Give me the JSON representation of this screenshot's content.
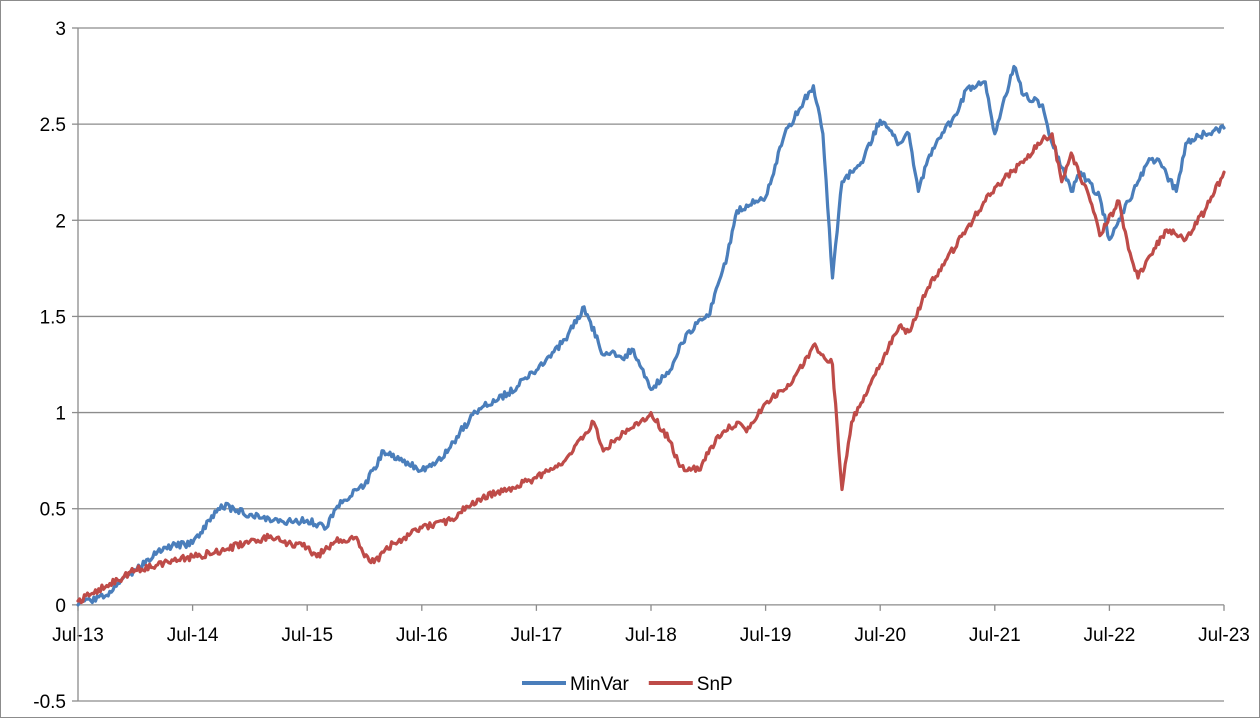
{
  "chart_data": {
    "type": "line",
    "title": "",
    "xlabel": "",
    "ylabel": "",
    "ylim": [
      -0.5,
      3
    ],
    "y_ticks": [
      -0.5,
      0,
      0.5,
      1,
      1.5,
      2,
      2.5,
      3
    ],
    "y_tick_labels": [
      "-0.5",
      "0",
      "0.5",
      "1",
      "1.5",
      "2",
      "2.5",
      "3"
    ],
    "x_range": [
      "2013-07",
      "2023-07"
    ],
    "x_tick_labels": [
      "Jul-13",
      "Jul-14",
      "Jul-15",
      "Jul-16",
      "Jul-17",
      "Jul-18",
      "Jul-19",
      "Jul-20",
      "Jul-21",
      "Jul-22",
      "Jul-23"
    ],
    "grid": "horizontal",
    "legend_position": "bottom",
    "series": [
      {
        "name": "MinVar",
        "color": "#4a7ebb",
        "x": [
          "2013-07",
          "2013-10",
          "2014-01",
          "2014-04",
          "2014-07",
          "2014-10",
          "2015-01",
          "2015-03",
          "2015-04",
          "2015-07",
          "2015-09",
          "2015-10",
          "2015-12",
          "2016-01",
          "2016-03",
          "2016-07",
          "2016-08",
          "2016-10",
          "2016-11",
          "2017-01",
          "2017-04",
          "2017-07",
          "2017-10",
          "2017-12",
          "2018-02",
          "2018-03",
          "2018-04",
          "2018-05",
          "2018-07",
          "2018-09",
          "2018-10",
          "2018-12",
          "2019-01",
          "2019-03",
          "2019-04",
          "2019-06",
          "2019-07",
          "2019-09",
          "2019-11",
          "2019-12",
          "2020-01",
          "2020-02",
          "2020-03",
          "2020-04",
          "2020-05",
          "2020-07",
          "2020-09",
          "2020-10",
          "2020-11",
          "2020-12",
          "2021-01",
          "2021-03",
          "2021-04",
          "2021-06",
          "2021-07",
          "2021-09",
          "2021-10",
          "2021-12",
          "2022-01",
          "2022-03",
          "2022-04",
          "2022-06",
          "2022-07",
          "2022-09",
          "2022-10",
          "2022-11",
          "2022-12",
          "2023-02",
          "2023-03",
          "2023-05",
          "2023-07"
        ],
        "y": [
          0.0,
          0.05,
          0.18,
          0.3,
          0.32,
          0.52,
          0.47,
          0.45,
          0.43,
          0.44,
          0.4,
          0.5,
          0.6,
          0.62,
          0.8,
          0.7,
          0.72,
          0.82,
          0.9,
          1.02,
          1.1,
          1.22,
          1.38,
          1.55,
          1.3,
          1.32,
          1.28,
          1.33,
          1.12,
          1.22,
          1.35,
          1.48,
          1.5,
          1.82,
          2.05,
          2.1,
          2.12,
          2.45,
          2.62,
          2.7,
          2.45,
          1.7,
          2.2,
          2.25,
          2.3,
          2.52,
          2.4,
          2.45,
          2.15,
          2.32,
          2.42,
          2.55,
          2.68,
          2.72,
          2.45,
          2.8,
          2.65,
          2.6,
          2.4,
          2.15,
          2.25,
          2.12,
          1.9,
          2.1,
          2.2,
          2.3,
          2.32,
          2.15,
          2.4,
          2.45,
          2.48
        ]
      },
      {
        "name": "SnP",
        "color": "#be4b48",
        "x": [
          "2013-07",
          "2013-10",
          "2014-01",
          "2014-04",
          "2014-07",
          "2014-10",
          "2015-01",
          "2015-03",
          "2015-05",
          "2015-07",
          "2015-08",
          "2015-10",
          "2015-12",
          "2016-01",
          "2016-02",
          "2016-04",
          "2016-07",
          "2016-10",
          "2016-11",
          "2017-01",
          "2017-04",
          "2017-07",
          "2017-10",
          "2017-12",
          "2018-01",
          "2018-02",
          "2018-03",
          "2018-05",
          "2018-07",
          "2018-09",
          "2018-10",
          "2018-12",
          "2019-02",
          "2019-04",
          "2019-05",
          "2019-07",
          "2019-09",
          "2019-11",
          "2019-12",
          "2020-02",
          "2020-03",
          "2020-04",
          "2020-05",
          "2020-06",
          "2020-07",
          "2020-09",
          "2020-10",
          "2020-12",
          "2021-02",
          "2021-04",
          "2021-06",
          "2021-08",
          "2021-10",
          "2021-12",
          "2022-01",
          "2022-02",
          "2022-03",
          "2022-05",
          "2022-06",
          "2022-08",
          "2022-09",
          "2022-10",
          "2022-11",
          "2023-01",
          "2023-03",
          "2023-05",
          "2023-07"
        ],
        "y": [
          0.02,
          0.1,
          0.18,
          0.22,
          0.25,
          0.28,
          0.33,
          0.35,
          0.32,
          0.3,
          0.25,
          0.33,
          0.35,
          0.25,
          0.22,
          0.32,
          0.4,
          0.44,
          0.48,
          0.55,
          0.6,
          0.66,
          0.75,
          0.88,
          0.95,
          0.8,
          0.85,
          0.92,
          1.0,
          0.85,
          0.72,
          0.7,
          0.88,
          0.95,
          0.9,
          1.05,
          1.12,
          1.25,
          1.35,
          1.25,
          0.6,
          0.95,
          1.05,
          1.15,
          1.25,
          1.45,
          1.42,
          1.65,
          1.8,
          1.95,
          2.1,
          2.22,
          2.3,
          2.42,
          2.45,
          2.2,
          2.35,
          2.1,
          1.92,
          2.1,
          1.85,
          1.7,
          1.8,
          1.95,
          1.9,
          2.05,
          2.25
        ]
      }
    ]
  }
}
